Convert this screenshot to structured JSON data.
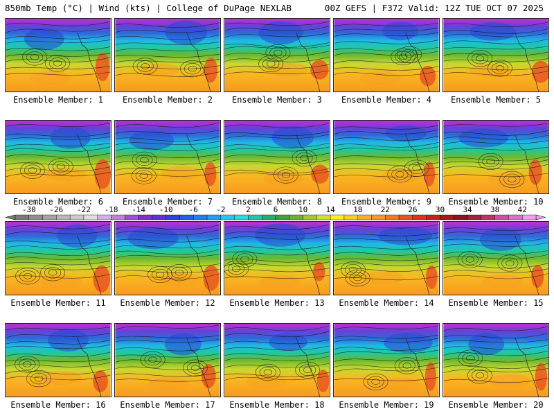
{
  "header": {
    "left": "850mb Temp (°C) | Wind (kts) | College of DuPage NEXLAB",
    "right": "00Z GEFS | F372 Valid: 12Z TUE OCT 07 2025"
  },
  "panel_label_prefix": "Ensemble Member: ",
  "members": [
    1,
    2,
    3,
    4,
    5,
    6,
    7,
    8,
    9,
    10,
    11,
    12,
    13,
    14,
    15,
    16,
    17,
    18,
    19,
    20
  ],
  "colorbar": {
    "min": -32,
    "max": 44,
    "step": 2,
    "tick_labels": [
      "-30",
      "-26",
      "-22",
      "-18",
      "-14",
      "-10",
      "-6",
      "-2",
      "2",
      "6",
      "10",
      "14",
      "18",
      "22",
      "26",
      "30",
      "34",
      "38",
      "42"
    ],
    "colors": [
      "#7a7a7a",
      "#8f8f8f",
      "#a4a4a4",
      "#b8b8b8",
      "#cbcbcb",
      "#e0e0e0",
      "#d4b0e8",
      "#c080e0",
      "#a050d8",
      "#8030d0",
      "#6030d8",
      "#3040e0",
      "#2060e8",
      "#2080f0",
      "#20a0f8",
      "#20c8f0",
      "#20e0e0",
      "#20c8a8",
      "#20b070",
      "#40a040",
      "#70b030",
      "#a0c830",
      "#d0e030",
      "#f8f020",
      "#f8d020",
      "#f8b020",
      "#f89820",
      "#f87820",
      "#f05020",
      "#e03020",
      "#c82020",
      "#a81818",
      "#901020",
      "#a02040",
      "#c03060",
      "#d050a0",
      "#e070c8",
      "#f0a0e8"
    ]
  }
}
